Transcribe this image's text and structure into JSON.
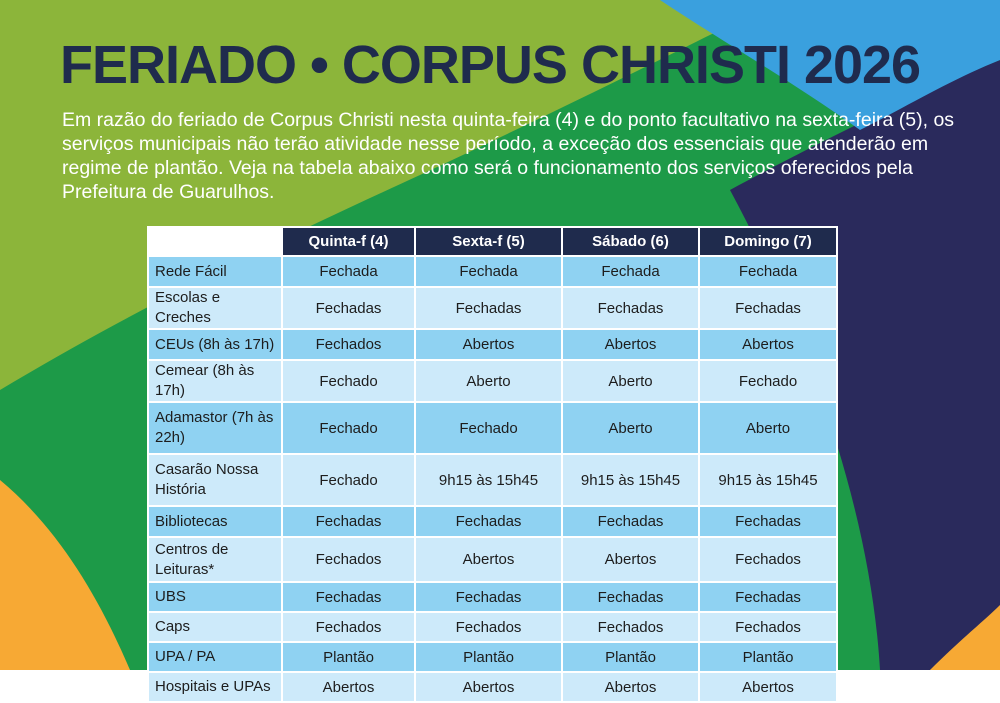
{
  "title": "FERIADO •  CORPUS CHRISTI 2026",
  "intro": "Em razão do feriado de Corpus Christi nesta quinta-feira (4) e do ponto facultativo na sexta-feira (5), os serviços municipais não terão atividade nesse período, a exceção dos essenciais que atenderão em regime de plantão. Veja na tabela abaixo como será o funcionamento dos serviços oferecidos pela Prefeitura de Guarulhos.",
  "colors": {
    "title": "#1f2b4d",
    "green_light": "#8cb53a",
    "green_dark": "#1d9a48",
    "orange": "#f7a934",
    "navy": "#2a2a5c",
    "blue": "#3aa0de",
    "row_dark": "#8fd2f2",
    "row_light": "#cdeafa"
  },
  "table": {
    "headers": [
      "Quinta-f (4)",
      "Sexta-f (5)",
      "Sábado (6)",
      "Domingo (7)"
    ],
    "rows": [
      {
        "label": "Rede Fácil",
        "values": [
          "Fechada",
          "Fechada",
          "Fechada",
          "Fechada"
        ]
      },
      {
        "label": "Escolas e Creches",
        "values": [
          "Fechadas",
          "Fechadas",
          "Fechadas",
          "Fechadas"
        ]
      },
      {
        "label": "CEUs (8h às 17h)",
        "values": [
          "Fechados",
          "Abertos",
          "Abertos",
          "Abertos"
        ]
      },
      {
        "label": "Cemear (8h às 17h)",
        "values": [
          "Fechado",
          "Aberto",
          "Aberto",
          "Fechado"
        ]
      },
      {
        "label": "Adamastor (7h às 22h)",
        "values": [
          "Fechado",
          "Fechado",
          "Aberto",
          "Aberto"
        ]
      },
      {
        "label": "Casarão Nossa História",
        "values": [
          "Fechado",
          "9h15 às 15h45",
          "9h15 às 15h45",
          "9h15 às 15h45"
        ]
      },
      {
        "label": "Bibliotecas",
        "values": [
          "Fechadas",
          "Fechadas",
          "Fechadas",
          "Fechadas"
        ]
      },
      {
        "label": "Centros de Leituras*",
        "values": [
          "Fechados",
          "Abertos",
          "Abertos",
          "Fechados"
        ]
      },
      {
        "label": "UBS",
        "values": [
          "Fechadas",
          "Fechadas",
          "Fechadas",
          "Fechadas"
        ]
      },
      {
        "label": "Caps",
        "values": [
          "Fechados",
          "Fechados",
          "Fechados",
          "Fechados"
        ]
      },
      {
        "label": "UPA / PA",
        "values": [
          "Plantão",
          "Plantão",
          "Plantão",
          "Plantão"
        ]
      },
      {
        "label": "Hospitais e UPAs",
        "values": [
          "Abertos",
          "Abertos",
          "Abertos",
          "Abertos"
        ]
      }
    ]
  }
}
